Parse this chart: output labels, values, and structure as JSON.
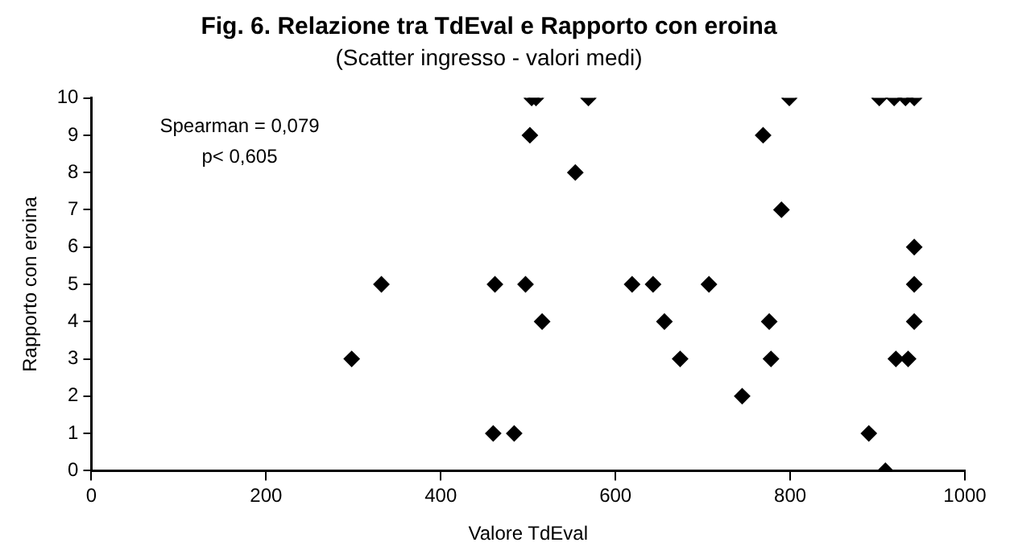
{
  "chart_data": {
    "type": "scatter",
    "title": "Fig. 6. Relazione tra TdEval e Rapporto con eroina",
    "subtitle": "(Scatter ingresso - valori medi)",
    "xlabel": "Valore TdEval",
    "ylabel": "Rapporto con eroina",
    "annotations": [
      "Spearman = 0,079",
      "p< 0,605"
    ],
    "series": [
      {
        "color": "#000000",
        "x": [
          298,
          332,
          460,
          462,
          484,
          497,
          502,
          504,
          509,
          516,
          554,
          569,
          619,
          643,
          656,
          674,
          707,
          745,
          769,
          776,
          778,
          790,
          799,
          890,
          902,
          909,
          919,
          921,
          932,
          935,
          942,
          942,
          942,
          942
        ],
        "values": [
          3,
          5,
          1,
          5,
          1,
          5,
          9,
          10,
          10,
          4,
          8,
          10,
          5,
          5,
          4,
          3,
          5,
          2,
          9,
          4,
          3,
          7,
          10,
          1,
          10,
          0,
          10,
          3,
          10,
          3,
          10,
          6,
          5,
          4
        ]
      }
    ],
    "xlim": [
      0,
      1000
    ],
    "xticks": [
      0,
      200,
      400,
      600,
      800,
      1000
    ],
    "ylim": [
      0,
      10
    ],
    "yticks": [
      0,
      1,
      2,
      3,
      4,
      5,
      6,
      7,
      8,
      9,
      10
    ],
    "grid": false,
    "legend": false,
    "marker": "diamond"
  }
}
